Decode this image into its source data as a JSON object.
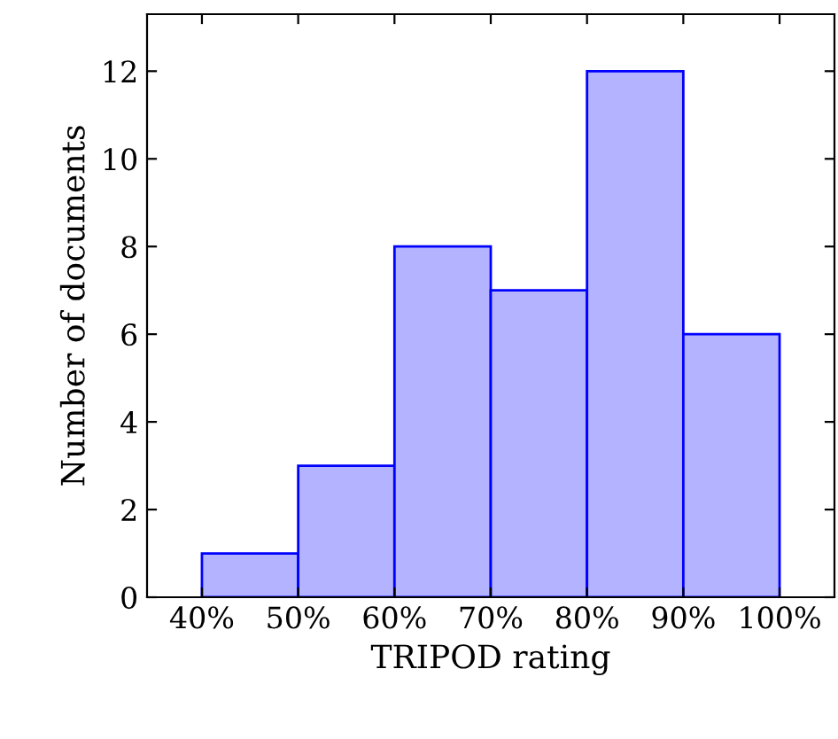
{
  "chart_data": {
    "type": "histogram",
    "xlabel": "TRIPOD rating",
    "ylabel": "Number of documents",
    "bins": [
      40,
      50,
      60,
      70,
      80,
      90,
      100
    ],
    "values": [
      1,
      3,
      8,
      7,
      12,
      6
    ],
    "color": "#b3b3ff",
    "xlim": [
      34.3,
      105.7
    ],
    "ylim": [
      0,
      13.3
    ],
    "xticks": [
      {
        "value": 40,
        "label": "40%"
      },
      {
        "value": 50,
        "label": "50%"
      },
      {
        "value": 60,
        "label": "60%"
      },
      {
        "value": 70,
        "label": "70%"
      },
      {
        "value": 80,
        "label": "80%"
      },
      {
        "value": 90,
        "label": "90%"
      },
      {
        "value": 100,
        "label": "100%"
      }
    ],
    "yticks": [
      0,
      2,
      4,
      6,
      8,
      10,
      12
    ],
    "grid": false,
    "legend": false
  }
}
